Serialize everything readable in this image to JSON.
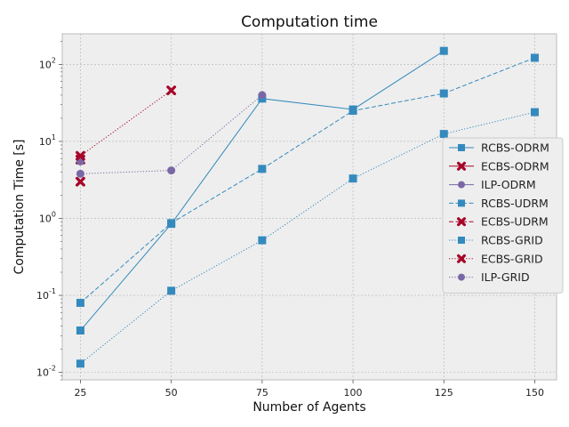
{
  "chart_data": {
    "type": "line",
    "title": "Computation time",
    "xlabel": "Number of Agents",
    "ylabel": "Computation Time [s]",
    "x_ticks": [
      25,
      50,
      75,
      100,
      125,
      150
    ],
    "xlim": [
      20,
      156
    ],
    "y_scale": "log",
    "ylim": [
      0.008,
      250
    ],
    "y_ticks": [
      {
        "value": 0.01,
        "base": "10",
        "exp": "-2"
      },
      {
        "value": 0.1,
        "base": "10",
        "exp": "-1"
      },
      {
        "value": 1,
        "base": "10",
        "exp": "0"
      },
      {
        "value": 10,
        "base": "10",
        "exp": "1"
      },
      {
        "value": 100,
        "base": "10",
        "exp": "2"
      }
    ],
    "grid": true,
    "legend_position": "center-right",
    "series": [
      {
        "name": "RCBS-ODRM",
        "color": "#348ABD",
        "dash": "solid",
        "marker": "square",
        "points": [
          [
            25,
            0.035
          ],
          [
            50,
            0.85
          ],
          [
            75,
            36
          ],
          [
            100,
            26
          ],
          [
            125,
            150
          ]
        ]
      },
      {
        "name": "ECBS-ODRM",
        "color": "#A60628",
        "dash": "solid",
        "marker": "x",
        "points": [
          [
            25,
            5.8
          ]
        ]
      },
      {
        "name": "ILP-ODRM",
        "color": "#7A68A6",
        "dash": "solid",
        "marker": "circle",
        "points": [
          [
            25,
            5.5
          ]
        ]
      },
      {
        "name": "RCBS-UDRM",
        "color": "#348ABD",
        "dash": "dashed",
        "marker": "square",
        "points": [
          [
            25,
            0.08
          ],
          [
            50,
            0.87
          ],
          [
            75,
            4.4
          ],
          [
            100,
            25
          ],
          [
            125,
            42
          ],
          [
            150,
            122
          ]
        ]
      },
      {
        "name": "ECBS-UDRM",
        "color": "#A60628",
        "dash": "dashed",
        "marker": "x",
        "points": [
          [
            25,
            3.0
          ]
        ]
      },
      {
        "name": "RCBS-GRID",
        "color": "#348ABD",
        "dash": "dotted",
        "marker": "square",
        "points": [
          [
            25,
            0.013
          ],
          [
            50,
            0.115
          ],
          [
            75,
            0.52
          ],
          [
            100,
            3.3
          ],
          [
            125,
            12.5
          ],
          [
            150,
            24
          ]
        ]
      },
      {
        "name": "ECBS-GRID",
        "color": "#A60628",
        "dash": "dotted",
        "marker": "x",
        "points": [
          [
            25,
            6.5
          ],
          [
            50,
            46
          ]
        ]
      },
      {
        "name": "ILP-GRID",
        "color": "#7A68A6",
        "dash": "dotted",
        "marker": "circle",
        "points": [
          [
            25,
            3.8
          ],
          [
            50,
            4.2
          ],
          [
            75,
            40
          ]
        ]
      }
    ]
  }
}
